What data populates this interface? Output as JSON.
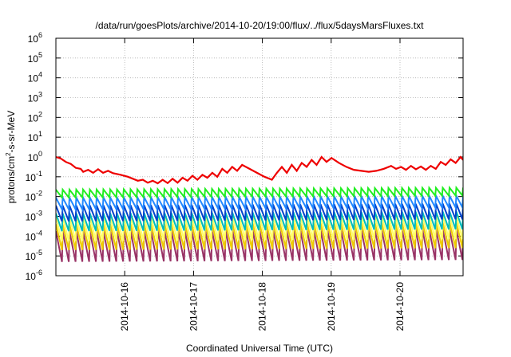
{
  "chart_data": {
    "type": "line",
    "title": "/data/run/goesPlots/archive/2014-10-20/19:00/flux/../flux/5daysMarsFluxes.txt",
    "xlabel": "Coordinated Universal Time (UTC)",
    "ylabel": "protons/cm²-s-sr-MeV",
    "ylabel_parts": {
      "pre": "protons/cm",
      "sup": "2",
      "post": "-s-sr-MeV"
    },
    "x_range": [
      "2014-10-15 00:00",
      "2014-10-20 22:00"
    ],
    "x_ticks": [
      "2014-10-16",
      "2014-10-17",
      "2014-10-18",
      "2014-10-19",
      "2014-10-20"
    ],
    "y_scale": "log",
    "ylim": [
      1e-06,
      1000000.0
    ],
    "y_ticks": [
      {
        "base": "10",
        "exp": "-6"
      },
      {
        "base": "10",
        "exp": "-5"
      },
      {
        "base": "10",
        "exp": "-4"
      },
      {
        "base": "10",
        "exp": "-3"
      },
      {
        "base": "10",
        "exp": "-2"
      },
      {
        "base": "10",
        "exp": "-1"
      },
      {
        "base": "10",
        "exp": "0"
      },
      {
        "base": "10",
        "exp": "1"
      },
      {
        "base": "10",
        "exp": "2"
      },
      {
        "base": "10",
        "exp": "3"
      },
      {
        "base": "10",
        "exp": "4"
      },
      {
        "base": "10",
        "exp": "5"
      },
      {
        "base": "10",
        "exp": "6"
      }
    ],
    "grid": true,
    "series": [
      {
        "color": "#ee0000",
        "sawtooth": false,
        "values_log10": [
          [
            0.0,
            0.0
          ],
          [
            0.1,
            -0.08
          ],
          [
            0.2,
            -0.25
          ],
          [
            0.3,
            -0.35
          ],
          [
            0.4,
            -0.55
          ],
          [
            0.5,
            -0.6
          ],
          [
            0.55,
            -0.75
          ],
          [
            0.65,
            -0.65
          ],
          [
            0.75,
            -0.8
          ],
          [
            0.85,
            -0.62
          ],
          [
            0.95,
            -0.8
          ],
          [
            1.05,
            -0.7
          ],
          [
            1.15,
            -0.82
          ],
          [
            1.3,
            -0.9
          ],
          [
            1.45,
            -1.0
          ],
          [
            1.55,
            -1.1
          ],
          [
            1.65,
            -1.2
          ],
          [
            1.75,
            -1.15
          ],
          [
            1.85,
            -1.3
          ],
          [
            1.95,
            -1.2
          ],
          [
            2.05,
            -1.33
          ],
          [
            2.15,
            -1.15
          ],
          [
            2.25,
            -1.32
          ],
          [
            2.35,
            -1.1
          ],
          [
            2.45,
            -1.3
          ],
          [
            2.55,
            -1.05
          ],
          [
            2.65,
            -1.2
          ],
          [
            2.75,
            -0.95
          ],
          [
            2.85,
            -1.15
          ],
          [
            2.95,
            -0.9
          ],
          [
            3.05,
            -1.05
          ],
          [
            3.15,
            -0.8
          ],
          [
            3.25,
            -1.0
          ],
          [
            3.35,
            -0.6
          ],
          [
            3.45,
            -0.8
          ],
          [
            3.55,
            -0.5
          ],
          [
            3.65,
            -0.7
          ],
          [
            3.75,
            -0.4
          ],
          [
            3.9,
            -0.6
          ],
          [
            4.05,
            -0.8
          ],
          [
            4.2,
            -1.0
          ],
          [
            4.35,
            -1.15
          ],
          [
            4.45,
            -0.8
          ],
          [
            4.55,
            -0.5
          ],
          [
            4.65,
            -0.8
          ],
          [
            4.75,
            -0.4
          ],
          [
            4.85,
            -0.7
          ],
          [
            4.95,
            -0.3
          ],
          [
            5.05,
            -0.5
          ],
          [
            5.15,
            -0.15
          ],
          [
            5.25,
            -0.4
          ],
          [
            5.35,
            0.0
          ],
          [
            5.45,
            -0.25
          ],
          [
            5.55,
            -0.05
          ],
          [
            5.7,
            -0.3
          ],
          [
            5.85,
            -0.5
          ],
          [
            6.0,
            -0.65
          ],
          [
            6.15,
            -0.7
          ],
          [
            6.3,
            -0.75
          ],
          [
            6.45,
            -0.7
          ],
          [
            6.6,
            -0.6
          ],
          [
            6.75,
            -0.45
          ],
          [
            6.85,
            -0.6
          ],
          [
            6.95,
            -0.5
          ],
          [
            7.05,
            -0.65
          ],
          [
            7.15,
            -0.45
          ],
          [
            7.25,
            -0.62
          ],
          [
            7.35,
            -0.48
          ],
          [
            7.45,
            -0.65
          ],
          [
            7.55,
            -0.45
          ],
          [
            7.65,
            -0.6
          ],
          [
            7.75,
            -0.25
          ],
          [
            7.85,
            -0.4
          ],
          [
            7.95,
            -0.12
          ],
          [
            8.05,
            -0.3
          ],
          [
            8.15,
            0.0
          ],
          [
            8.2,
            -0.15
          ]
        ]
      },
      {
        "color": "#22ee22",
        "sawtooth": true,
        "peak_log10": -1.65,
        "trough_log10": -2.05,
        "trend_log10": 0.1
      },
      {
        "color": "#2288ff",
        "sawtooth": true,
        "peak_log10": -2.05,
        "trough_log10": -2.65,
        "trend_log10": 0.1
      },
      {
        "color": "#0044cc",
        "sawtooth": true,
        "peak_log10": -2.45,
        "trough_log10": -3.25,
        "trend_log10": 0.1
      },
      {
        "color": "#00bbbb",
        "sawtooth": true,
        "peak_log10": -2.85,
        "trough_log10": -3.75,
        "trend_log10": 0.1
      },
      {
        "color": "#ffff66",
        "sawtooth": true,
        "peak_log10": -3.05,
        "trough_log10": -4.25,
        "trend_log10": 0.1
      },
      {
        "color": "#eecc00",
        "sawtooth": true,
        "peak_log10": -3.4,
        "trough_log10": -4.7,
        "trend_log10": 0.1
      },
      {
        "color": "#993366",
        "sawtooth": true,
        "peak_log10": -3.75,
        "trough_log10": -5.3,
        "trend_log10": 0.1
      }
    ]
  }
}
